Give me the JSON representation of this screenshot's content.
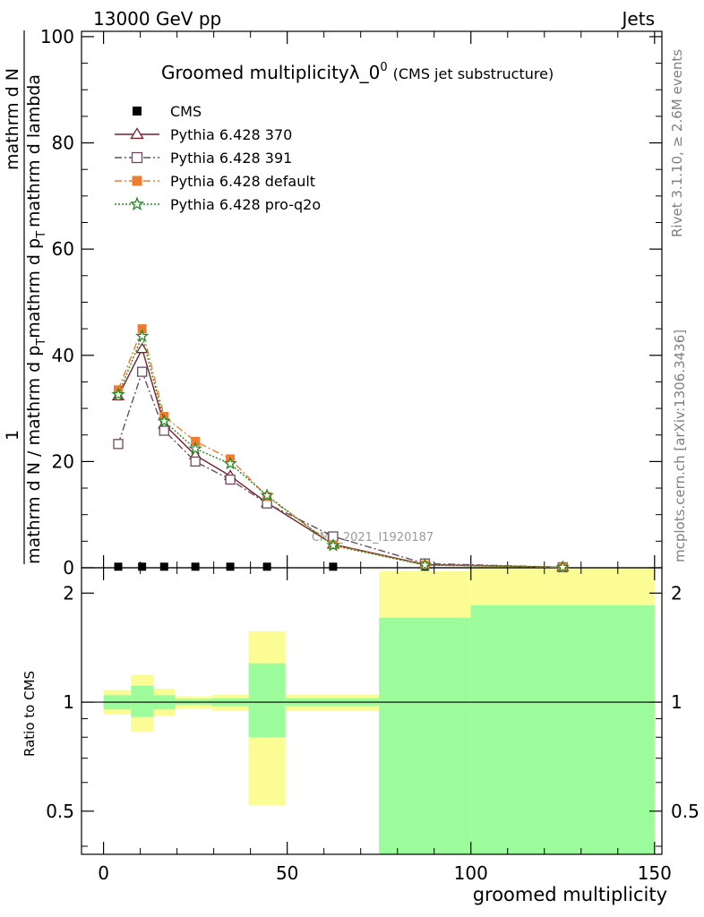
{
  "header": {
    "energy_label": "13000 GeV pp",
    "category_label": "Jets",
    "title_main": "Groomed multiplicityλ_0",
    "title_sup": "0",
    "title_sub": "(CMS jet substructure)",
    "side_rivet": "Rivet 3.1.10, ≥ 2.6M events",
    "side_mcplots": "mcplots.cern.ch [arXiv:1306.3436]",
    "watermark": "CMS_2021_I1920187"
  },
  "chart_data": [
    {
      "type": "line",
      "panel": "main",
      "ylabel_numerator": "1",
      "ylabel_frac_top": "mathrm d N",
      "ylabel_denominator": "mathrm d N / mathrm d p",
      "ylabel_T1": "T",
      "ylabel_mid": "mathrm d p",
      "ylabel_T2": "T",
      "ylabel_end": "mathrm d lambda",
      "ylim": [
        0,
        101
      ],
      "yticks": [
        "0",
        "20",
        "40",
        "60",
        "80",
        "100"
      ],
      "xlim": [
        -6,
        152
      ],
      "legend_position": "top-left",
      "series": [
        {
          "name": "CMS",
          "color": "#000000",
          "marker": "square-filled",
          "dash": "none",
          "x": [
            4,
            10.5,
            16.5,
            25,
            34.5,
            44.5,
            62.5,
            87.5
          ],
          "y": [
            0.2,
            0.2,
            0.2,
            0.2,
            0.2,
            0.2,
            0.2,
            0.2
          ]
        },
        {
          "name": "Pythia 6.428 370",
          "color": "#7a1f2b",
          "marker": "triangle-open",
          "dash": "none",
          "x": [
            4,
            10.5,
            16.5,
            25,
            34.5,
            44.5,
            62.5,
            87.5,
            125
          ],
          "y": [
            32.3,
            41.2,
            27.0,
            21.2,
            17.3,
            12.2,
            4.4,
            0.6,
            0.1
          ]
        },
        {
          "name": "Pythia 6.428 391",
          "color": "#6e4a5e",
          "marker": "square-open",
          "dash": "8,3,2,3",
          "x": [
            4,
            10.5,
            16.5,
            25,
            34.5,
            44.5,
            62.5,
            87.5,
            125
          ],
          "y": [
            23.3,
            36.9,
            25.8,
            20.0,
            16.6,
            12.1,
            5.9,
            0.8,
            0.1
          ]
        },
        {
          "name": "Pythia 6.428 default",
          "color": "#f07c30",
          "marker": "square-filled",
          "dash": "8,3,2,3",
          "x": [
            4,
            10.5,
            16.5,
            25,
            34.5,
            44.5,
            62.5,
            87.5,
            125
          ],
          "y": [
            33.5,
            45.0,
            28.5,
            23.8,
            20.5,
            13.4,
            4.3,
            0.5,
            0.1
          ]
        },
        {
          "name": "Pythia 6.428 pro-q2o",
          "color": "#1f8a1f",
          "marker": "star",
          "dash": "2,2",
          "x": [
            4,
            10.5,
            16.5,
            25,
            34.5,
            44.5,
            62.5,
            87.5,
            125
          ],
          "y": [
            32.6,
            43.6,
            27.6,
            22.4,
            19.6,
            13.6,
            4.2,
            0.5,
            0.1
          ]
        }
      ]
    },
    {
      "type": "area",
      "panel": "ratio",
      "ylabel": "Ratio to CMS",
      "ylim": [
        0.38,
        2.35
      ],
      "log_scale": true,
      "yticks": [
        "0.5",
        "1",
        "2"
      ],
      "xlabel": "groomed multiplicity",
      "xticks": [
        "0",
        "50",
        "100",
        "150"
      ],
      "xlim": [
        -6,
        152
      ],
      "reference_line": 1,
      "bins": [
        {
          "x0": 0,
          "x1": 7.5,
          "stat": [
            0.955,
            1.045
          ],
          "total": [
            0.925,
            1.08
          ]
        },
        {
          "x0": 7.5,
          "x1": 13.5,
          "stat": [
            0.91,
            1.11
          ],
          "total": [
            0.83,
            1.19
          ]
        },
        {
          "x0": 13.5,
          "x1": 19.5,
          "stat": [
            0.955,
            1.045
          ],
          "total": [
            0.915,
            1.09
          ]
        },
        {
          "x0": 19.5,
          "x1": 29.5,
          "stat": [
            0.985,
            1.02
          ],
          "total": [
            0.96,
            1.035
          ]
        },
        {
          "x0": 29.5,
          "x1": 39.5,
          "stat": [
            0.975,
            1.025
          ],
          "total": [
            0.945,
            1.05
          ]
        },
        {
          "x0": 39.5,
          "x1": 49.5,
          "stat": [
            0.8,
            1.28
          ],
          "total": [
            0.52,
            1.57
          ]
        },
        {
          "x0": 49.5,
          "x1": 75,
          "stat": [
            0.975,
            1.025
          ],
          "total": [
            0.945,
            1.05
          ]
        },
        {
          "x0": 75,
          "x1": 100,
          "stat": [
            0.38,
            1.71
          ],
          "total": [
            0.38,
            2.3
          ]
        },
        {
          "x0": 100,
          "x1": 150,
          "stat": [
            0.38,
            1.85
          ],
          "total": [
            0.38,
            2.35
          ]
        }
      ],
      "colors": {
        "stat": "#9cfc9c",
        "total": "#fcfc94"
      }
    }
  ]
}
